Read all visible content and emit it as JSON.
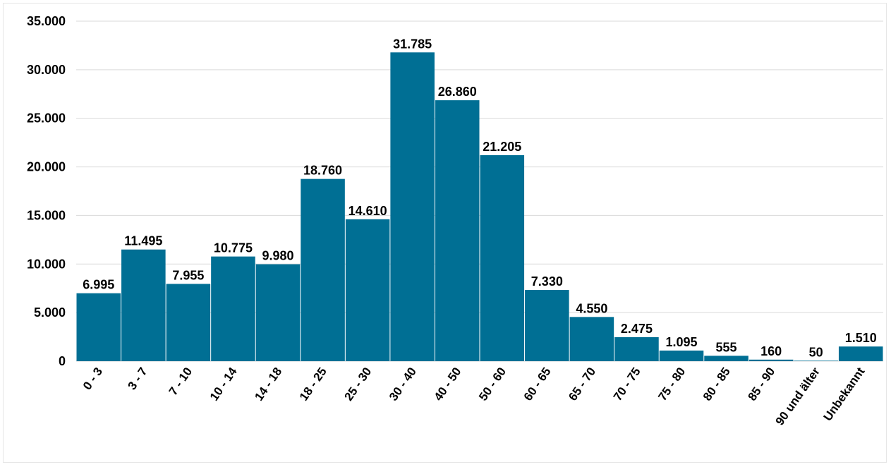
{
  "chart_data": {
    "type": "bar",
    "title": "",
    "xlabel": "",
    "ylabel": "",
    "ylim": [
      0,
      35000
    ],
    "yticks": [
      0,
      5000,
      10000,
      15000,
      20000,
      25000,
      30000,
      35000
    ],
    "ytick_labels": [
      "0",
      "5.000",
      "10.000",
      "15.000",
      "20.000",
      "25.000",
      "30.000",
      "35.000"
    ],
    "grid": true,
    "legend": "none",
    "bar_color": "#006F94",
    "categories": [
      "0 - 3",
      "3 - 7",
      "7 - 10",
      "10 - 14",
      "14 - 18",
      "18 - 25",
      "25 - 30",
      "30 - 40",
      "40 - 50",
      "50 - 60",
      "60 - 65",
      "65 - 70",
      "70 - 75",
      "75 - 80",
      "80 - 85",
      "85 - 90",
      "90 und älter",
      "Unbekannt"
    ],
    "values": [
      6995,
      11495,
      7955,
      10775,
      9980,
      18760,
      14610,
      31785,
      26860,
      21205,
      7330,
      4550,
      2475,
      1095,
      555,
      160,
      50,
      1510
    ],
    "data_labels": [
      "6.995",
      "11.495",
      "7.955",
      "10.775",
      "9.980",
      "18.760",
      "14.610",
      "31.785",
      "26.860",
      "21.205",
      "7.330",
      "4.550",
      "2.475",
      "1.095",
      "555",
      "160",
      "50",
      "1.510"
    ]
  }
}
